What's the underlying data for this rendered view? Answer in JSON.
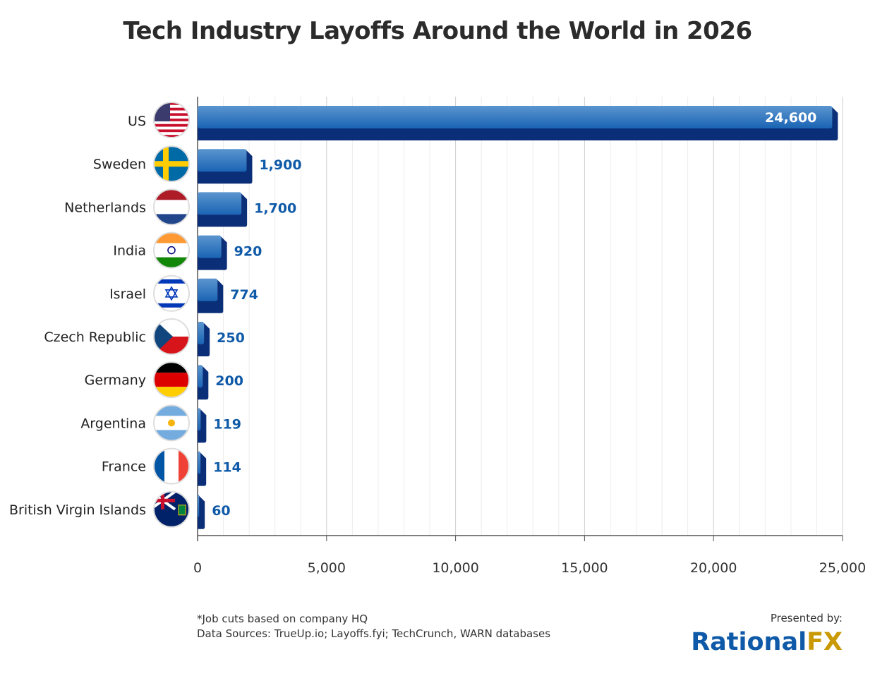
{
  "chart_data": {
    "type": "bar",
    "orientation": "horizontal",
    "title": "Tech Industry Layoffs Around the World in 2026",
    "categories": [
      "US",
      "Sweden",
      "Netherlands",
      "India",
      "Israel",
      "Czech Republic",
      "Germany",
      "Argentina",
      "France",
      "British Virgin Islands"
    ],
    "values": [
      24600,
      1900,
      1700,
      920,
      774,
      250,
      200,
      119,
      114,
      60
    ],
    "data_labels": [
      "24,600",
      "1,900",
      "1,700",
      "920",
      "774",
      "250",
      "200",
      "119",
      "114",
      "60"
    ],
    "xlim": [
      0,
      25000
    ],
    "xticks": [
      0,
      5000,
      10000,
      15000,
      20000,
      25000
    ],
    "xtick_labels": [
      "0",
      "5,000",
      "10,000",
      "15,000",
      "20,000",
      "25,000"
    ],
    "grid": true,
    "colors": {
      "bar_light": "#5b95cf",
      "bar_mid": "#1a64b4",
      "bar_dark": "#0b2e78",
      "label": "#0f5aa8"
    }
  },
  "footnote": "*Job cuts based on company HQ",
  "sources": "Data Sources: TrueUp.io; Layoffs.fyi; TechCrunch, WARN databases",
  "presented_by": "Presented by:",
  "logo": {
    "part1": "Rational",
    "part2": "FX"
  }
}
